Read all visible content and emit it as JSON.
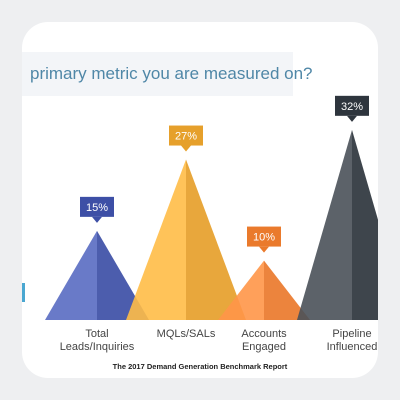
{
  "header": {
    "question_fragment": "primary metric you are measured on?"
  },
  "source": "The 2017 Demand Generation Benchmark Report",
  "colors": {
    "background": "#eeeff1",
    "banner_text": "#4f87a7",
    "series": [
      "#3d4fa6",
      "#e6a02b",
      "#ea7a2c",
      "#2e353d"
    ]
  },
  "chart_data": {
    "type": "area",
    "title": "",
    "xlabel": "",
    "ylabel": "",
    "categories": [
      [
        "Total",
        "Leads/Inquiries"
      ],
      [
        "MQLs/SALs"
      ],
      [
        "Accounts",
        "Engaged"
      ],
      [
        "Pipeline",
        "Influenced"
      ]
    ],
    "values": [
      15,
      27,
      10,
      32
    ],
    "value_labels": [
      "15%",
      "27%",
      "10%",
      "32%"
    ],
    "ylim": [
      0,
      35
    ],
    "grid": false,
    "legend": "none"
  }
}
